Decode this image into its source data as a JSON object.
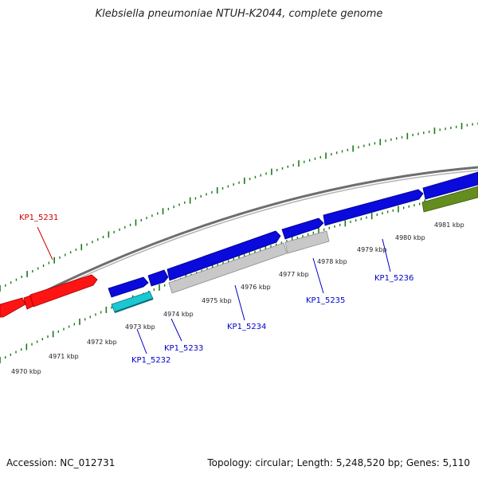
{
  "title": "Klebsiella pneumoniae NTUH-K2044, complete genome",
  "footer": {
    "accession": "Accession: NC_012731",
    "topology": "Topology: circular; Length: 5,248,520 bp; Genes: 5,110"
  },
  "colors": {
    "reverse_strand_gene": "#ff1414",
    "forward_strand_gene": "#0a0adc",
    "cyan_gene": "#19c8d2",
    "grey_gene": "#c8c8c8",
    "olive_gene": "#648c1e",
    "backbone": "#7a7a7a",
    "tick": "#1a7a1a"
  },
  "kbp_labels": [
    "4970 kbp",
    "4971 kbp",
    "4972 kbp",
    "4973 kbp",
    "4974 kbp",
    "4975 kbp",
    "4976 kbp",
    "4977 kbp",
    "4978 kbp",
    "4979 kbp",
    "4980 kbp",
    "4981 kbp"
  ],
  "genes": [
    {
      "name": "KP1_5231",
      "color": "#cc0000"
    },
    {
      "name": "KP1_5232",
      "color": "#0000cc"
    },
    {
      "name": "KP1_5233",
      "color": "#0000cc"
    },
    {
      "name": "KP1_5234",
      "color": "#0000cc"
    },
    {
      "name": "KP1_5235",
      "color": "#0000cc"
    },
    {
      "name": "KP1_5236",
      "color": "#0000cc"
    }
  ]
}
